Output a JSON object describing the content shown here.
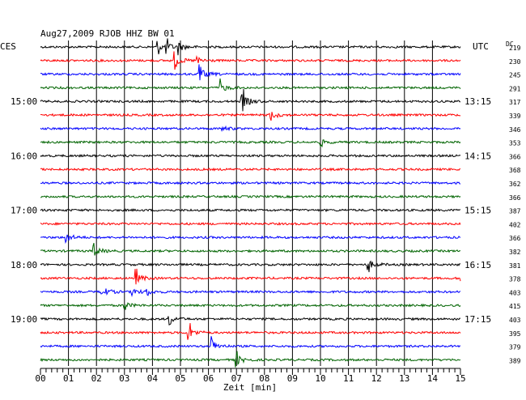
{
  "chart_data": {
    "type": "line",
    "title": "Aug27,2009  RJOB HHZ BW 01",
    "left_zone_label": "CES",
    "right_zone_label": "UTC",
    "dc_label": "DC",
    "xlabel": "Zeit [min]",
    "xlim": [
      0,
      15
    ],
    "x_tick_labels": [
      "00",
      "01",
      "02",
      "03",
      "04",
      "05",
      "06",
      "07",
      "08",
      "09",
      "10",
      "11",
      "12",
      "13",
      "14",
      "15"
    ],
    "grid": true,
    "trace_colors": [
      "#000000",
      "#ff0000",
      "#0000ff",
      "#006400"
    ],
    "left_time_labels": [
      {
        "row": 4,
        "text": "15:00"
      },
      {
        "row": 8,
        "text": "16:00"
      },
      {
        "row": 12,
        "text": "17:00"
      },
      {
        "row": 16,
        "text": "18:00"
      },
      {
        "row": 20,
        "text": "19:00"
      }
    ],
    "right_time_labels": [
      {
        "row": 4,
        "text": "13:15"
      },
      {
        "row": 8,
        "text": "14:15"
      },
      {
        "row": 12,
        "text": "15:15"
      },
      {
        "row": 16,
        "text": "16:15"
      },
      {
        "row": 20,
        "text": "17:15"
      }
    ],
    "dc_values": [
      "219",
      "230",
      "245",
      "291",
      "317",
      "339",
      "346",
      "353",
      "366",
      "368",
      "362",
      "366",
      "387",
      "402",
      "366",
      "382",
      "381",
      "378",
      "403",
      "415",
      "403",
      "395",
      "379",
      "389"
    ],
    "events": [
      {
        "row": 0,
        "minute": 4.2,
        "amp": 0.8
      },
      {
        "row": 0,
        "minute": 4.5,
        "amp": 0.9
      },
      {
        "row": 0,
        "minute": 4.9,
        "amp": 1.0
      },
      {
        "row": 1,
        "minute": 4.8,
        "amp": 1.0
      },
      {
        "row": 1,
        "minute": 5.6,
        "amp": 0.6
      },
      {
        "row": 2,
        "minute": 5.7,
        "amp": 1.1
      },
      {
        "row": 3,
        "minute": 6.4,
        "amp": 1.0
      },
      {
        "row": 4,
        "minute": 7.2,
        "amp": 1.4
      },
      {
        "row": 5,
        "minute": 8.2,
        "amp": 0.9
      },
      {
        "row": 6,
        "minute": 6.5,
        "amp": 0.4
      },
      {
        "row": 7,
        "minute": 10.0,
        "amp": 0.5
      },
      {
        "row": 14,
        "minute": 0.9,
        "amp": 0.9
      },
      {
        "row": 15,
        "minute": 1.9,
        "amp": 0.9
      },
      {
        "row": 16,
        "minute": 11.7,
        "amp": 0.9
      },
      {
        "row": 17,
        "minute": 3.4,
        "amp": 1.0
      },
      {
        "row": 17,
        "minute": 15.0,
        "amp": 0.6
      },
      {
        "row": 18,
        "minute": 2.2,
        "amp": 1.0
      },
      {
        "row": 18,
        "minute": 3.3,
        "amp": 0.6
      },
      {
        "row": 18,
        "minute": 3.8,
        "amp": 0.5
      },
      {
        "row": 19,
        "minute": 3.0,
        "amp": 0.6
      },
      {
        "row": 20,
        "minute": 4.6,
        "amp": 0.7
      },
      {
        "row": 21,
        "minute": 5.3,
        "amp": 1.1
      },
      {
        "row": 22,
        "minute": 6.1,
        "amp": 1.2
      },
      {
        "row": 23,
        "minute": 7.0,
        "amp": 0.9
      }
    ]
  }
}
